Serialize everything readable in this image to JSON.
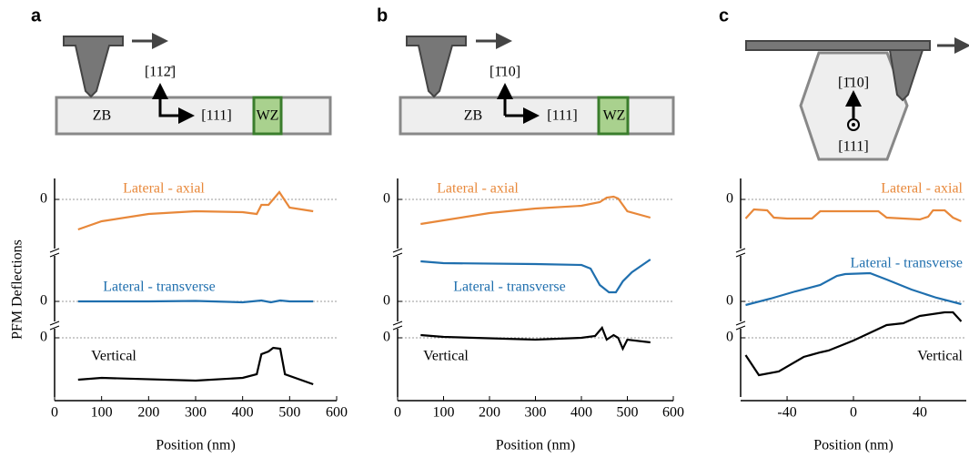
{
  "panel_labels": [
    "a",
    "b",
    "c"
  ],
  "schematics": [
    {
      "labels": [
        "ZB",
        "[111]",
        "WZ",
        "[112̄]"
      ]
    },
    {
      "labels": [
        "ZB",
        "[111]",
        "WZ",
        "[1̄10]"
      ]
    },
    {
      "labels": [
        "[1̄10]",
        "[111]"
      ]
    }
  ],
  "chart_data": [
    {
      "type": "line",
      "ylabel": "PFM Deflections",
      "xlabel": "Position (nm)",
      "xlim": [
        0,
        600
      ],
      "xticks": [
        0,
        100,
        200,
        300,
        400,
        500,
        600
      ],
      "series": [
        {
          "name": "Lateral - axial",
          "color": "#e8883a",
          "ylim": [
            -5.7,
            2.3
          ],
          "yticks": [
            0
          ],
          "x": [
            50,
            100,
            200,
            300,
            400,
            430,
            440,
            455,
            478,
            500,
            550
          ],
          "values": [
            -3.3,
            -2.4,
            -1.6,
            -1.3,
            -1.4,
            -1.6,
            -0.6,
            -0.6,
            0.8,
            -0.9,
            -1.3
          ]
        },
        {
          "name": "Lateral - transverse",
          "color": "#1f6fae",
          "ylim": [
            -2.5,
            5.1
          ],
          "yticks": [
            0
          ],
          "x": [
            50,
            200,
            300,
            400,
            440,
            460,
            480,
            500,
            550
          ],
          "values": [
            0,
            0,
            0.05,
            -0.1,
            0.1,
            -0.1,
            0.1,
            0,
            0
          ]
        },
        {
          "name": "Vertical",
          "color": "#000000",
          "ylim": [
            -6.5,
            1.1
          ],
          "yticks": [
            0
          ],
          "x": [
            50,
            100,
            300,
            400,
            430,
            440,
            455,
            465,
            480,
            490,
            550
          ],
          "values": [
            -4.6,
            -4.4,
            -4.7,
            -4.4,
            -4.0,
            -1.8,
            -1.5,
            -1.1,
            -1.2,
            -4.0,
            -5.1
          ]
        }
      ]
    },
    {
      "type": "line",
      "xlabel": "Position (nm)",
      "xlim": [
        0,
        600
      ],
      "xticks": [
        0,
        100,
        200,
        300,
        400,
        500,
        600
      ],
      "series": [
        {
          "name": "Lateral - axial",
          "color": "#e8883a",
          "ylim": [
            -5.7,
            2.3
          ],
          "yticks": [
            0
          ],
          "x": [
            50,
            100,
            200,
            300,
            400,
            440,
            455,
            470,
            480,
            500,
            550
          ],
          "values": [
            -2.7,
            -2.3,
            -1.5,
            -1.0,
            -0.7,
            -0.3,
            0.2,
            0.3,
            0.1,
            -1.3,
            -2.0
          ]
        },
        {
          "name": "Lateral - transverse",
          "color": "#1f6fae",
          "ylim": [
            -2.5,
            5.1
          ],
          "yticks": [
            0
          ],
          "x": [
            50,
            100,
            300,
            400,
            420,
            440,
            460,
            475,
            490,
            510,
            550
          ],
          "values": [
            4.4,
            4.2,
            4.1,
            4.0,
            3.6,
            1.8,
            1.0,
            1.0,
            2.2,
            3.2,
            4.6
          ]
        },
        {
          "name": "Vertical",
          "color": "#000000",
          "ylim": [
            -6.5,
            1.1
          ],
          "yticks": [
            0
          ],
          "x": [
            50,
            100,
            300,
            400,
            430,
            445,
            455,
            470,
            480,
            490,
            500,
            550
          ],
          "values": [
            0.3,
            0.1,
            -0.2,
            0,
            0.2,
            1.1,
            -0.2,
            0.3,
            0,
            -1.2,
            -0.2,
            -0.5
          ]
        }
      ]
    },
    {
      "type": "line",
      "xlabel": "Position (nm)",
      "xlim": [
        -68,
        68
      ],
      "xticks": [
        -40,
        0,
        40
      ],
      "series": [
        {
          "name": "Lateral - axial",
          "color": "#e8883a",
          "ylim": [
            -5.7,
            2.3
          ],
          "yticks": [
            0
          ],
          "x": [
            -65,
            -60,
            -52,
            -48,
            -40,
            -25,
            -20,
            15,
            20,
            40,
            45,
            48,
            55,
            60,
            65
          ],
          "values": [
            -2.1,
            -1.1,
            -1.2,
            -2.0,
            -2.1,
            -2.1,
            -1.3,
            -1.3,
            -2.0,
            -2.2,
            -1.9,
            -1.2,
            -1.2,
            -2.0,
            -2.4
          ]
        },
        {
          "name": "Lateral - transverse",
          "color": "#1f6fae",
          "ylim": [
            -2.5,
            5.1
          ],
          "yticks": [
            0
          ],
          "x": [
            -65,
            -50,
            -35,
            -20,
            -10,
            -5,
            10,
            20,
            35,
            50,
            65
          ],
          "values": [
            -0.4,
            0.3,
            1.1,
            1.8,
            2.8,
            3.0,
            3.1,
            2.4,
            1.3,
            0.4,
            -0.3
          ]
        },
        {
          "name": "Vertical",
          "color": "#000000",
          "ylim": [
            -6.5,
            3.2
          ],
          "yticks": [
            0
          ],
          "x": [
            -65,
            -57,
            -45,
            -30,
            -20,
            -15,
            0,
            20,
            30,
            40,
            55,
            60,
            65
          ],
          "values": [
            -1.9,
            -4.1,
            -3.7,
            -2.1,
            -1.6,
            -1.4,
            -0.3,
            1.4,
            1.6,
            2.4,
            2.8,
            2.8,
            1.8
          ]
        }
      ]
    }
  ]
}
